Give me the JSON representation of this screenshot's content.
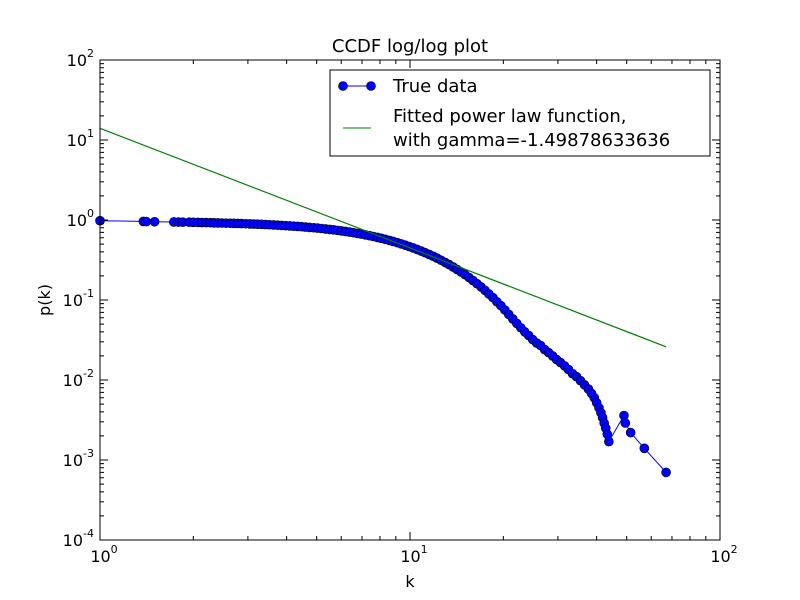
{
  "chart_data": {
    "type": "line",
    "title": "CCDF log/log plot",
    "xlabel": "k",
    "ylabel": "p(k)",
    "xscale": "log",
    "yscale": "log",
    "xlim": [
      1,
      100
    ],
    "ylim": [
      0.0001,
      100
    ],
    "x_ticks": [
      {
        "value": 1,
        "base": "10",
        "exp": "0"
      },
      {
        "value": 10,
        "base": "10",
        "exp": "1"
      },
      {
        "value": 100,
        "base": "10",
        "exp": "2"
      }
    ],
    "y_ticks": [
      {
        "value": 0.0001,
        "base": "10",
        "exp": "-4"
      },
      {
        "value": 0.001,
        "base": "10",
        "exp": "-3"
      },
      {
        "value": 0.01,
        "base": "10",
        "exp": "-2"
      },
      {
        "value": 0.1,
        "base": "10",
        "exp": "-1"
      },
      {
        "value": 1,
        "base": "10",
        "exp": "0"
      },
      {
        "value": 10,
        "base": "10",
        "exp": "1"
      },
      {
        "value": 100,
        "base": "10",
        "exp": "2"
      }
    ],
    "grid": false,
    "legend_position": "top-right",
    "series": [
      {
        "name": "True data",
        "style": "line-with-markers",
        "color": "#0000ff",
        "marker_edge": "#000000",
        "x": [
          1.0,
          1.38,
          1.41,
          1.5,
          1.73,
          1.79,
          1.85,
          1.94,
          2.0,
          2.07,
          2.13,
          2.2,
          2.27,
          2.33,
          2.4,
          2.47,
          2.55,
          2.63,
          2.7,
          2.78,
          2.86,
          2.95,
          3.04,
          3.13,
          3.22,
          3.32,
          3.42,
          3.52,
          3.63,
          3.74,
          3.85,
          3.97,
          4.09,
          4.21,
          4.34,
          4.47,
          4.6,
          4.74,
          4.89,
          5.03,
          5.18,
          5.34,
          5.5,
          5.67,
          5.84,
          6.01,
          6.19,
          6.38,
          6.57,
          6.77,
          6.97,
          7.18,
          7.4,
          7.62,
          7.85,
          8.08,
          8.33,
          8.58,
          8.83,
          9.1,
          9.37,
          9.65,
          9.94,
          10.24,
          10.55,
          10.87,
          11.19,
          11.53,
          11.88,
          12.23,
          12.6,
          12.98,
          13.37,
          13.77,
          14.18,
          14.61,
          15.05,
          15.5,
          15.96,
          16.44,
          16.94,
          17.45,
          17.97,
          18.51,
          19.06,
          19.64,
          20.23,
          20.83,
          21.46,
          22.1,
          22.77,
          23.45,
          24.15,
          24.88,
          25.62,
          26.39,
          27.19,
          28.0,
          28.84,
          29.71,
          30.6,
          31.52,
          32.47,
          33.44,
          34.45,
          35.48,
          36.55,
          37.64,
          38.5,
          39.3,
          40.0,
          40.7,
          41.3,
          41.8,
          42.3,
          42.8,
          43.3,
          43.8,
          49.0,
          49.5,
          51.5,
          57.0,
          67.0
        ],
        "y": [
          0.98,
          0.96,
          0.955,
          0.95,
          0.945,
          0.943,
          0.94,
          0.938,
          0.935,
          0.933,
          0.93,
          0.928,
          0.925,
          0.922,
          0.92,
          0.917,
          0.914,
          0.911,
          0.908,
          0.905,
          0.902,
          0.898,
          0.894,
          0.89,
          0.886,
          0.882,
          0.877,
          0.872,
          0.867,
          0.862,
          0.856,
          0.85,
          0.844,
          0.838,
          0.831,
          0.824,
          0.816,
          0.808,
          0.8,
          0.792,
          0.783,
          0.773,
          0.763,
          0.753,
          0.742,
          0.731,
          0.719,
          0.707,
          0.694,
          0.68,
          0.666,
          0.652,
          0.637,
          0.622,
          0.606,
          0.59,
          0.573,
          0.556,
          0.539,
          0.521,
          0.503,
          0.485,
          0.466,
          0.447,
          0.428,
          0.409,
          0.39,
          0.371,
          0.352,
          0.333,
          0.314,
          0.295,
          0.277,
          0.259,
          0.241,
          0.224,
          0.207,
          0.191,
          0.175,
          0.16,
          0.146,
          0.132,
          0.119,
          0.107,
          0.095,
          0.085,
          0.075,
          0.066,
          0.058,
          0.051,
          0.045,
          0.04,
          0.036,
          0.032,
          0.029,
          0.027,
          0.024,
          0.022,
          0.02,
          0.018,
          0.0165,
          0.015,
          0.0135,
          0.012,
          0.011,
          0.0098,
          0.0087,
          0.0077,
          0.0068,
          0.006,
          0.0052,
          0.0045,
          0.0039,
          0.0034,
          0.0029,
          0.0025,
          0.0021,
          0.0017,
          0.0036,
          0.0029,
          0.0022,
          0.0014,
          0.0007
        ]
      },
      {
        "name": "Fitted power law function,\nwith gamma=-1.49878633636",
        "style": "line",
        "color": "#008000",
        "x": [
          1.0,
          67.0
        ],
        "y": [
          14.0,
          0.026
        ]
      }
    ],
    "legend": [
      {
        "line1": "True data",
        "line2": ""
      },
      {
        "line1": "Fitted power law function,",
        "line2": "with gamma=-1.49878633636"
      }
    ]
  }
}
